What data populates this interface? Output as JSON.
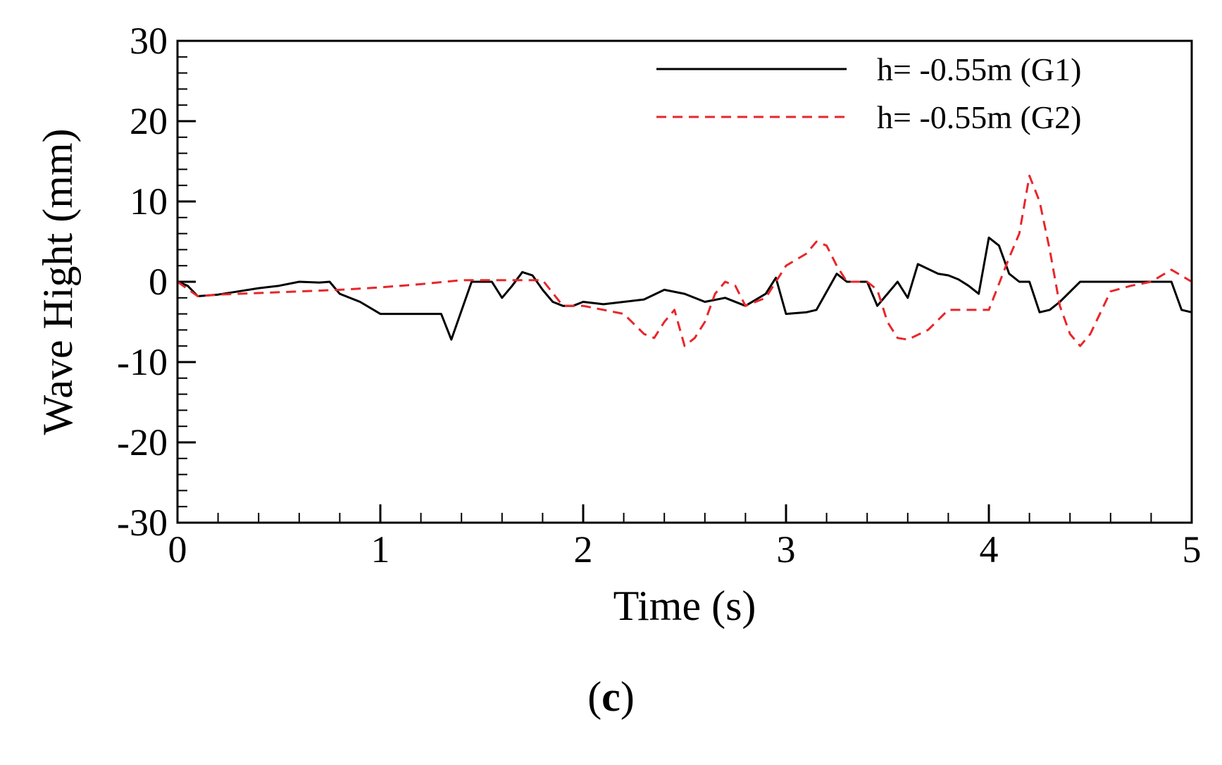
{
  "caption": {
    "open": "(",
    "letter": "c",
    "close": ")"
  },
  "chart_data": {
    "type": "line",
    "title": "",
    "xlabel": "Time (s)",
    "ylabel": "Wave Hight (mm)",
    "xlim": [
      0,
      5
    ],
    "ylim": [
      -30,
      30
    ],
    "xticks": [
      0,
      1,
      2,
      3,
      4,
      5
    ],
    "yticks": [
      30,
      20,
      10,
      0,
      -10,
      -20,
      -30
    ],
    "grid": false,
    "legend": "top-right",
    "series": [
      {
        "name": "h= -0.55m (G1)",
        "color": "#000000",
        "style": "solid",
        "x": [
          0,
          0.05,
          0.1,
          0.2,
          0.3,
          0.4,
          0.5,
          0.6,
          0.7,
          0.75,
          0.8,
          0.9,
          1.0,
          1.1,
          1.2,
          1.3,
          1.35,
          1.45,
          1.55,
          1.6,
          1.65,
          1.7,
          1.75,
          1.8,
          1.85,
          1.9,
          1.95,
          2.0,
          2.1,
          2.2,
          2.3,
          2.4,
          2.5,
          2.6,
          2.7,
          2.8,
          2.9,
          2.95,
          3.0,
          3.1,
          3.15,
          3.25,
          3.3,
          3.4,
          3.45,
          3.5,
          3.55,
          3.6,
          3.65,
          3.75,
          3.8,
          3.85,
          3.9,
          3.95,
          4.0,
          4.05,
          4.1,
          4.15,
          4.2,
          4.25,
          4.3,
          4.35,
          4.45,
          4.5,
          4.6,
          4.7,
          4.8,
          4.9,
          4.95,
          5.0
        ],
        "y": [
          0,
          -0.5,
          -1.8,
          -1.6,
          -1.2,
          -0.8,
          -0.5,
          0,
          -0.1,
          0,
          -1.5,
          -2.5,
          -4,
          -4,
          -4,
          -4,
          -7.2,
          0,
          0,
          -2,
          -0.5,
          1.2,
          0.8,
          -1,
          -2.5,
          -3,
          -3,
          -2.5,
          -2.8,
          -2.5,
          -2.2,
          -1,
          -1.5,
          -2.5,
          -2,
          -3,
          -1.5,
          0.5,
          -4,
          -3.8,
          -3.5,
          1,
          0,
          0,
          -3,
          -1.5,
          0,
          -2,
          2.2,
          1,
          0.8,
          0.3,
          -0.5,
          -1.5,
          5.5,
          4.5,
          1,
          0,
          0,
          -3.8,
          -3.5,
          -2.5,
          0,
          0,
          0,
          0,
          0,
          0,
          -3.5,
          -3.8
        ]
      },
      {
        "name": "h= -0.55m (G2)",
        "color": "#e8262a",
        "style": "dashed",
        "x": [
          0,
          0.1,
          0.2,
          0.4,
          0.6,
          0.8,
          1.0,
          1.2,
          1.4,
          1.6,
          1.8,
          1.9,
          2.0,
          2.1,
          2.2,
          2.3,
          2.35,
          2.4,
          2.45,
          2.5,
          2.55,
          2.6,
          2.65,
          2.7,
          2.75,
          2.8,
          2.85,
          2.9,
          3.0,
          3.1,
          3.15,
          3.2,
          3.25,
          3.3,
          3.4,
          3.45,
          3.5,
          3.55,
          3.6,
          3.7,
          3.8,
          3.9,
          4.0,
          4.1,
          4.15,
          4.2,
          4.25,
          4.3,
          4.35,
          4.4,
          4.45,
          4.5,
          4.6,
          4.7,
          4.8,
          4.9,
          5.0
        ],
        "y": [
          0,
          -1.8,
          -1.6,
          -1.4,
          -1.2,
          -1,
          -0.7,
          -0.3,
          0.2,
          0.2,
          0.2,
          -3,
          -3,
          -3.5,
          -4,
          -6.5,
          -7,
          -5,
          -3.5,
          -8,
          -7,
          -5,
          -1.5,
          0,
          -0.5,
          -3,
          -2.5,
          -2,
          2,
          3.5,
          5,
          4.5,
          2,
          0,
          0,
          -1,
          -5,
          -7,
          -7.2,
          -6,
          -3.5,
          -3.5,
          -3.5,
          3,
          6,
          13.2,
          10,
          4,
          -3,
          -6.5,
          -8,
          -6.5,
          -1.2,
          -0.5,
          0,
          1.5,
          0
        ]
      }
    ]
  }
}
